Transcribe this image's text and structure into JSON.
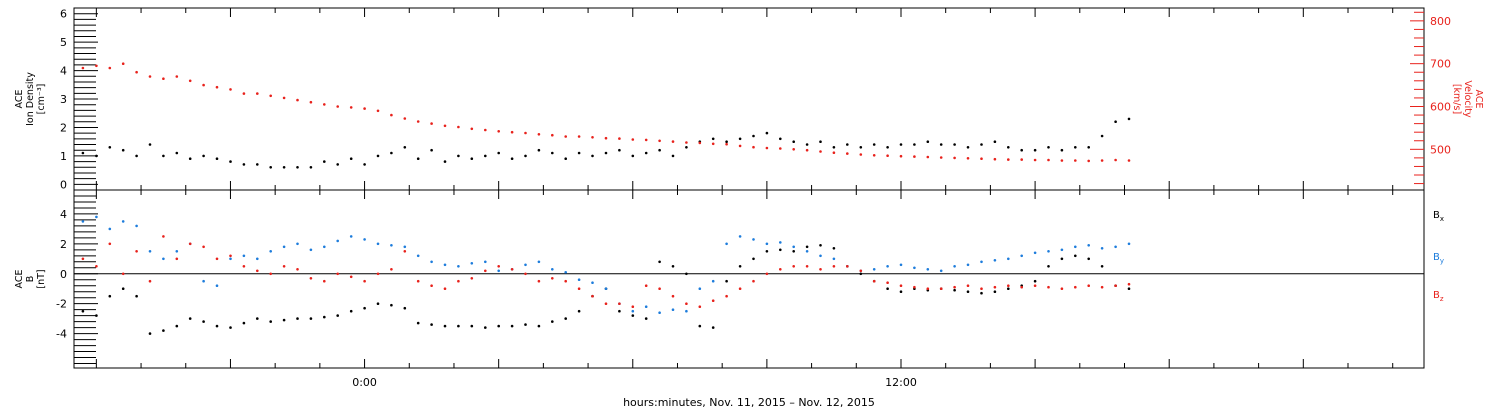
{
  "xlabel": "hours:minutes, Nov. 11, 2015 – Nov. 12, 2015",
  "chart_data": [
    {
      "type": "scatter",
      "panel": "plasma",
      "x_unit": "hours from 2015-11-11 00:00 UT",
      "xlim": [
        -6.5,
        23.7
      ],
      "x_ticks": [
        {
          "x": 0,
          "label": "0:00"
        },
        {
          "x": 12,
          "label": "12:00"
        }
      ],
      "left_axis": {
        "label_lines": [
          "ACE",
          "Ion Density",
          "[cm⁻³]"
        ],
        "ylim": [
          -0.2,
          6.2
        ],
        "ticks": [
          0,
          1,
          2,
          3,
          4,
          5,
          6
        ],
        "color": "#000000"
      },
      "right_axis": {
        "label_lines": [
          "ACE",
          "Velocity",
          "[km/s]"
        ],
        "ylim": [
          405,
          830
        ],
        "ticks": [
          500,
          600,
          700,
          800
        ],
        "color": "#e8221c"
      },
      "series": [
        {
          "axis": "left",
          "color": "#000000",
          "x": [
            -6.3,
            -6.0,
            -5.7,
            -5.4,
            -5.1,
            -4.8,
            -4.5,
            -4.2,
            -3.9,
            -3.6,
            -3.3,
            -3.0,
            -2.7,
            -2.4,
            -2.1,
            -1.8,
            -1.5,
            -1.2,
            -0.9,
            -0.6,
            -0.3,
            0.0,
            0.3,
            0.6,
            0.9,
            1.2,
            1.5,
            1.8,
            2.1,
            2.4,
            2.7,
            3.0,
            3.3,
            3.6,
            3.9,
            4.2,
            4.5,
            4.8,
            5.1,
            5.4,
            5.7,
            6.0,
            6.3,
            6.6,
            6.9,
            7.2,
            7.5,
            7.8,
            8.1,
            8.4,
            8.7,
            9.0,
            9.3,
            9.6,
            9.9,
            10.2,
            10.5,
            10.8,
            11.1,
            11.4,
            11.7,
            12.0,
            12.3,
            12.6,
            12.9,
            13.2,
            13.5,
            13.8,
            14.1,
            14.4,
            14.7,
            15.0,
            15.3,
            15.6,
            15.9,
            16.2,
            16.5,
            16.8,
            17.1
          ],
          "values": [
            1.1,
            1.0,
            1.3,
            1.2,
            1.0,
            1.4,
            1.0,
            1.1,
            0.9,
            1.0,
            0.9,
            0.8,
            0.7,
            0.7,
            0.6,
            0.6,
            0.6,
            0.6,
            0.8,
            0.7,
            0.9,
            0.7,
            1.0,
            1.1,
            1.3,
            0.9,
            1.2,
            0.8,
            1.0,
            0.9,
            1.0,
            1.1,
            0.9,
            1.0,
            1.2,
            1.1,
            0.9,
            1.1,
            1.0,
            1.1,
            1.2,
            1.0,
            1.1,
            1.2,
            1.0,
            1.3,
            1.5,
            1.6,
            1.5,
            1.6,
            1.7,
            1.8,
            1.6,
            1.5,
            1.4,
            1.5,
            1.3,
            1.4,
            1.3,
            1.4,
            1.3,
            1.4,
            1.4,
            1.5,
            1.4,
            1.4,
            1.3,
            1.4,
            1.5,
            1.3,
            1.2,
            1.2,
            1.3,
            1.2,
            1.3,
            1.3,
            1.7,
            2.2,
            2.3
          ]
        },
        {
          "axis": "right",
          "color": "#e8221c",
          "x": [
            -6.3,
            -6.0,
            -5.7,
            -5.4,
            -5.1,
            -4.8,
            -4.5,
            -4.2,
            -3.9,
            -3.6,
            -3.3,
            -3.0,
            -2.7,
            -2.4,
            -2.1,
            -1.8,
            -1.5,
            -1.2,
            -0.9,
            -0.6,
            -0.3,
            0.0,
            0.3,
            0.6,
            0.9,
            1.2,
            1.5,
            1.8,
            2.1,
            2.4,
            2.7,
            3.0,
            3.3,
            3.6,
            3.9,
            4.2,
            4.5,
            4.8,
            5.1,
            5.4,
            5.7,
            6.0,
            6.3,
            6.6,
            6.9,
            7.2,
            7.5,
            7.8,
            8.1,
            8.4,
            8.7,
            9.0,
            9.3,
            9.6,
            9.9,
            10.2,
            10.5,
            10.8,
            11.1,
            11.4,
            11.7,
            12.0,
            12.3,
            12.6,
            12.9,
            13.2,
            13.5,
            13.8,
            14.1,
            14.4,
            14.7,
            15.0,
            15.3,
            15.6,
            15.9,
            16.2,
            16.5,
            16.8,
            17.1
          ],
          "values": [
            690,
            695,
            690,
            700,
            680,
            670,
            665,
            670,
            660,
            650,
            645,
            640,
            630,
            630,
            625,
            620,
            615,
            610,
            605,
            600,
            598,
            595,
            590,
            580,
            572,
            565,
            560,
            555,
            552,
            548,
            545,
            542,
            540,
            538,
            535,
            533,
            530,
            530,
            528,
            526,
            525,
            523,
            522,
            520,
            518,
            516,
            515,
            513,
            512,
            508,
            505,
            503,
            502,
            500,
            498,
            495,
            492,
            490,
            488,
            486,
            485,
            484,
            483,
            482,
            481,
            480,
            479,
            478,
            477,
            476,
            476,
            475,
            475,
            474,
            474,
            473,
            474,
            475,
            474
          ]
        }
      ]
    },
    {
      "type": "scatter",
      "panel": "magnetic-field",
      "x_unit": "hours from 2015-11-11 00:00 UT",
      "xlim": [
        -6.5,
        23.7
      ],
      "x_ticks": [
        {
          "x": 0,
          "label": "0:00"
        },
        {
          "x": 12,
          "label": "12:00"
        }
      ],
      "left_axis": {
        "label_lines": [
          "ACE",
          "B",
          "[nT]"
        ],
        "ylim": [
          -6.3,
          5.6
        ],
        "ticks": [
          -4,
          -2,
          0,
          2,
          4
        ],
        "color": "#000000"
      },
      "zero_line": true,
      "series": [
        {
          "name": "Bx",
          "label_main": "B",
          "label_sub": "x",
          "color": "#000000",
          "x": [
            -6.3,
            -6.0,
            -5.7,
            -5.4,
            -5.1,
            -4.8,
            -4.5,
            -4.2,
            -3.9,
            -3.6,
            -3.3,
            -3.0,
            -2.7,
            -2.4,
            -2.1,
            -1.8,
            -1.5,
            -1.2,
            -0.9,
            -0.6,
            -0.3,
            0.0,
            0.3,
            0.6,
            0.9,
            1.2,
            1.5,
            1.8,
            2.1,
            2.4,
            2.7,
            3.0,
            3.3,
            3.6,
            3.9,
            4.2,
            4.5,
            4.8,
            5.1,
            5.4,
            5.7,
            6.0,
            6.3,
            6.6,
            6.9,
            7.2,
            7.5,
            7.8,
            8.1,
            8.4,
            8.7,
            9.0,
            9.3,
            9.6,
            9.9,
            10.2,
            10.5,
            10.8,
            11.1,
            11.4,
            11.7,
            12.0,
            12.3,
            12.6,
            12.9,
            13.2,
            13.5,
            13.8,
            14.1,
            14.4,
            14.7,
            15.0,
            15.3,
            15.6,
            15.9,
            16.2,
            16.5,
            16.8,
            17.1
          ],
          "values": [
            -2.5,
            -2.8,
            -1.5,
            -1.0,
            -1.5,
            -4.0,
            -3.8,
            -3.5,
            -3.0,
            -3.2,
            -3.5,
            -3.6,
            -3.3,
            -3.0,
            -3.2,
            -3.1,
            -3.0,
            -3.0,
            -2.9,
            -2.8,
            -2.5,
            -2.3,
            -2.0,
            -2.1,
            -2.3,
            -3.3,
            -3.4,
            -3.5,
            -3.5,
            -3.5,
            -3.6,
            -3.5,
            -3.5,
            -3.4,
            -3.5,
            -3.2,
            -3.0,
            -2.5,
            -1.5,
            -1.0,
            -2.5,
            -2.8,
            -3.0,
            0.8,
            0.5,
            0.0,
            -3.5,
            -3.6,
            -0.5,
            0.5,
            1.0,
            1.5,
            1.6,
            1.5,
            1.8,
            1.9,
            1.7,
            0.5,
            0.0,
            -0.5,
            -1.0,
            -1.2,
            -1.0,
            -1.1,
            -1.0,
            -1.1,
            -1.2,
            -1.3,
            -1.2,
            -1.0,
            -0.8,
            -0.5,
            0.5,
            1.0,
            1.2,
            1.0,
            0.5,
            -0.8,
            -1.0
          ]
        },
        {
          "name": "By",
          "label_main": "B",
          "label_sub": "y",
          "color": "#1e7ddc",
          "x": [
            -6.3,
            -6.0,
            -5.7,
            -5.4,
            -5.1,
            -4.8,
            -4.5,
            -4.2,
            -3.9,
            -3.6,
            -3.3,
            -3.0,
            -2.7,
            -2.4,
            -2.1,
            -1.8,
            -1.5,
            -1.2,
            -0.9,
            -0.6,
            -0.3,
            0.0,
            0.3,
            0.6,
            0.9,
            1.2,
            1.5,
            1.8,
            2.1,
            2.4,
            2.7,
            3.0,
            3.3,
            3.6,
            3.9,
            4.2,
            4.5,
            4.8,
            5.1,
            5.4,
            5.7,
            6.0,
            6.3,
            6.6,
            6.9,
            7.2,
            7.5,
            7.8,
            8.1,
            8.4,
            8.7,
            9.0,
            9.3,
            9.6,
            9.9,
            10.2,
            10.5,
            10.8,
            11.1,
            11.4,
            11.7,
            12.0,
            12.3,
            12.6,
            12.9,
            13.2,
            13.5,
            13.8,
            14.1,
            14.4,
            14.7,
            15.0,
            15.3,
            15.6,
            15.9,
            16.2,
            16.5,
            16.8,
            17.1
          ],
          "values": [
            3.5,
            3.8,
            3.0,
            3.5,
            3.2,
            1.5,
            1.0,
            1.5,
            2.0,
            -0.5,
            -0.8,
            1.0,
            1.2,
            1.0,
            1.5,
            1.8,
            2.0,
            1.6,
            1.8,
            2.2,
            2.5,
            2.3,
            2.0,
            1.9,
            1.8,
            1.2,
            0.8,
            0.6,
            0.5,
            0.7,
            0.8,
            0.2,
            0.3,
            0.6,
            0.8,
            0.3,
            0.1,
            -0.4,
            -0.6,
            -1.0,
            -2.0,
            -2.5,
            -2.2,
            -2.6,
            -2.4,
            -2.5,
            -1.0,
            -0.5,
            2.0,
            2.5,
            2.3,
            2.0,
            2.1,
            1.8,
            1.5,
            1.2,
            1.0,
            0.5,
            0.2,
            0.3,
            0.5,
            0.6,
            0.4,
            0.3,
            0.2,
            0.5,
            0.6,
            0.8,
            0.9,
            1.0,
            1.2,
            1.4,
            1.5,
            1.6,
            1.8,
            1.9,
            1.7,
            1.8,
            2.0
          ]
        },
        {
          "name": "Bz",
          "label_main": "B",
          "label_sub": "z",
          "color": "#e8221c",
          "x": [
            -6.3,
            -6.0,
            -5.7,
            -5.4,
            -5.1,
            -4.8,
            -4.5,
            -4.2,
            -3.9,
            -3.6,
            -3.3,
            -3.0,
            -2.7,
            -2.4,
            -2.1,
            -1.8,
            -1.5,
            -1.2,
            -0.9,
            -0.6,
            -0.3,
            0.0,
            0.3,
            0.6,
            0.9,
            1.2,
            1.5,
            1.8,
            2.1,
            2.4,
            2.7,
            3.0,
            3.3,
            3.6,
            3.9,
            4.2,
            4.5,
            4.8,
            5.1,
            5.4,
            5.7,
            6.0,
            6.3,
            6.6,
            6.9,
            7.2,
            7.5,
            7.8,
            8.1,
            8.4,
            8.7,
            9.0,
            9.3,
            9.6,
            9.9,
            10.2,
            10.5,
            10.8,
            11.1,
            11.4,
            11.7,
            12.0,
            12.3,
            12.6,
            12.9,
            13.2,
            13.5,
            13.8,
            14.1,
            14.4,
            14.7,
            15.0,
            15.3,
            15.6,
            15.9,
            16.2,
            16.5,
            16.8,
            17.1
          ],
          "values": [
            1.0,
            0.5,
            2.0,
            0.0,
            1.5,
            -0.5,
            2.5,
            1.0,
            2.0,
            1.8,
            1.0,
            1.2,
            0.5,
            0.2,
            0.0,
            0.5,
            0.3,
            -0.3,
            -0.5,
            0.0,
            -0.2,
            -0.5,
            0.0,
            0.3,
            1.5,
            -0.5,
            -0.8,
            -1.0,
            -0.5,
            -0.3,
            0.2,
            0.5,
            0.3,
            0.0,
            -0.5,
            -0.3,
            -0.5,
            -1.0,
            -1.5,
            -2.0,
            -2.0,
            -2.2,
            -0.8,
            -1.0,
            -1.5,
            -2.0,
            -2.2,
            -1.8,
            -1.5,
            -1.0,
            -0.5,
            0.0,
            0.3,
            0.5,
            0.5,
            0.3,
            0.5,
            0.5,
            0.2,
            -0.5,
            -0.6,
            -0.8,
            -0.9,
            -1.0,
            -1.0,
            -0.9,
            -0.8,
            -1.0,
            -0.9,
            -0.8,
            -0.9,
            -0.8,
            -0.9,
            -1.0,
            -0.9,
            -0.8,
            -0.9,
            -0.8,
            -0.7
          ]
        }
      ]
    }
  ]
}
